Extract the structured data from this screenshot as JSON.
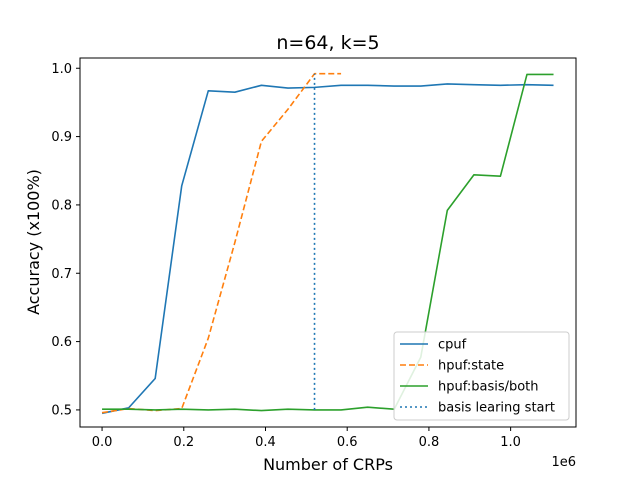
{
  "chart_data": {
    "type": "line",
    "title": "n=64, k=5",
    "xlabel": "Number of CRPs",
    "ylabel": "Accuracy (x100%)",
    "x_offset_label": "1e6",
    "xlim": [
      -0.054,
      1.16
    ],
    "ylim": [
      0.475,
      1.015
    ],
    "x_ticks": [
      0.0,
      0.2,
      0.4,
      0.6,
      0.8,
      1.0
    ],
    "x_tick_labels": [
      "0.0",
      "0.2",
      "0.4",
      "0.6",
      "0.8",
      "1.0"
    ],
    "y_ticks": [
      0.5,
      0.6,
      0.7,
      0.8,
      0.9,
      1.0
    ],
    "y_tick_labels": [
      "0.5",
      "0.6",
      "0.7",
      "0.8",
      "0.9",
      "1.0"
    ],
    "grid": false,
    "legend_position": "lower-right",
    "series": [
      {
        "name": "cpuf",
        "color": "#1f77b4",
        "style": "solid",
        "x": [
          0.0,
          0.065,
          0.13,
          0.195,
          0.26,
          0.325,
          0.39,
          0.455,
          0.52,
          0.585,
          0.65,
          0.715,
          0.78,
          0.845,
          0.91,
          0.975,
          1.04,
          1.105
        ],
        "y": [
          0.495,
          0.503,
          0.546,
          0.828,
          0.967,
          0.965,
          0.975,
          0.971,
          0.972,
          0.975,
          0.975,
          0.974,
          0.974,
          0.977,
          0.976,
          0.975,
          0.976,
          0.975
        ]
      },
      {
        "name": "hpuf:state",
        "color": "#ff7f0e",
        "style": "dashed",
        "x": [
          0.0,
          0.065,
          0.13,
          0.195,
          0.26,
          0.325,
          0.39,
          0.455,
          0.52,
          0.585
        ],
        "y": [
          0.496,
          0.502,
          0.499,
          0.502,
          0.605,
          0.745,
          0.893,
          0.94,
          0.992,
          0.992
        ]
      },
      {
        "name": "hpuf:basis/both",
        "color": "#2ca02c",
        "style": "solid",
        "x": [
          0.0,
          0.065,
          0.13,
          0.195,
          0.26,
          0.325,
          0.39,
          0.455,
          0.52,
          0.585,
          0.65,
          0.715,
          0.78,
          0.845,
          0.91,
          0.975,
          1.04,
          1.105
        ],
        "y": [
          0.501,
          0.501,
          0.5,
          0.501,
          0.5,
          0.501,
          0.499,
          0.501,
          0.5,
          0.5,
          0.504,
          0.501,
          0.577,
          0.792,
          0.844,
          0.842,
          0.991,
          0.991
        ]
      },
      {
        "name": "basis learing start",
        "color": "#1f77b4",
        "style": "dotted",
        "x": [
          0.52,
          0.52
        ],
        "y": [
          0.5,
          0.992
        ]
      }
    ]
  }
}
